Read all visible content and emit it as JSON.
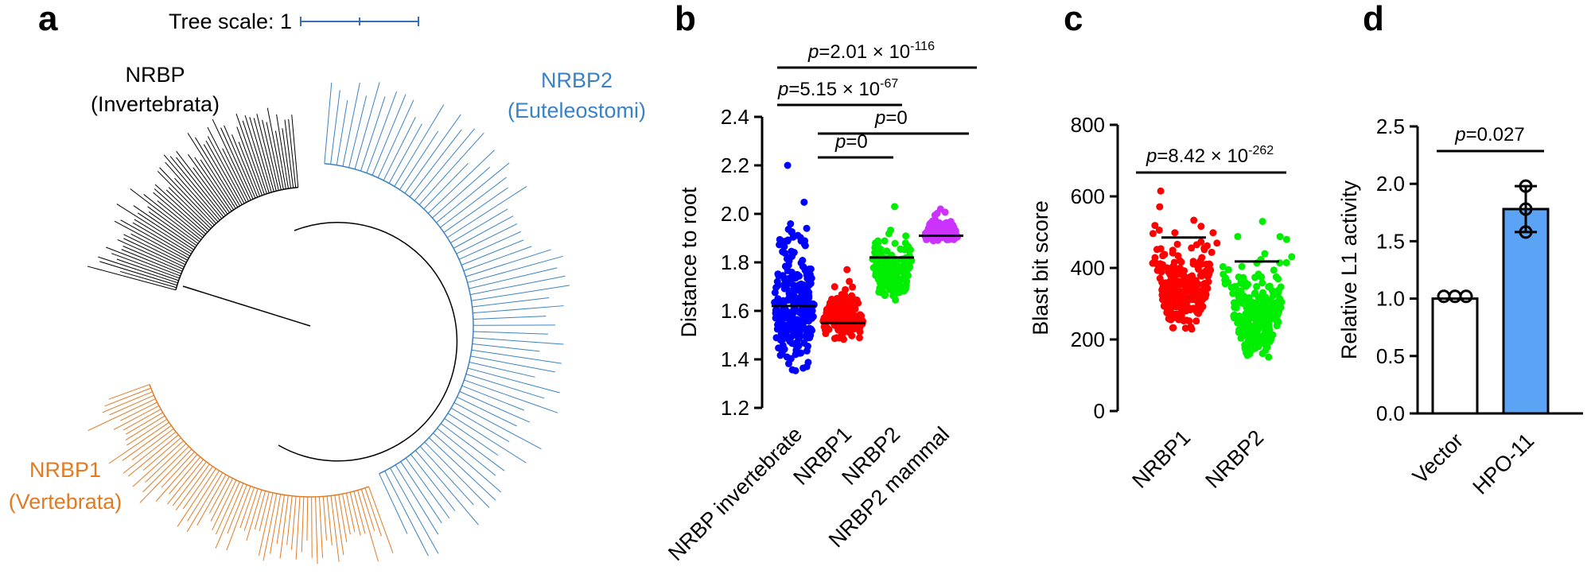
{
  "panels": {
    "a": {
      "label": "a",
      "tree_scale_label": "Tree scale: 1",
      "clades": [
        {
          "name": "NRBP",
          "subtitle": "(Invertebrata)",
          "color": "#000000"
        },
        {
          "name": "NRBP2",
          "subtitle": "(Euteleostomi)",
          "color": "#3b82c4"
        },
        {
          "name": "NRBP1",
          "subtitle": "(Vertebrata)",
          "color": "#e07b24"
        }
      ]
    },
    "b": {
      "label": "b"
    },
    "c": {
      "label": "c"
    },
    "d": {
      "label": "d"
    }
  },
  "chart_data": [
    {
      "panel": "b",
      "type": "scatter",
      "ylabel": "Distance to root",
      "ylim": [
        1.2,
        2.4
      ],
      "yticks": [
        "1.2",
        "1.4",
        "1.6",
        "1.8",
        "2.0",
        "2.2",
        "2.4"
      ],
      "categories": [
        "NRBP invertebrate",
        "NRBP1",
        "NRBP2",
        "NRBP2 mammal"
      ],
      "series": [
        {
          "name": "NRBP invertebrate",
          "color": "#0000ff",
          "median": 1.62,
          "min": 1.33,
          "max": 2.2
        },
        {
          "name": "NRBP1",
          "color": "#ff0000",
          "median": 1.55,
          "min": 1.47,
          "max": 1.77
        },
        {
          "name": "NRBP2",
          "color": "#00ee00",
          "median": 1.82,
          "min": 1.62,
          "max": 2.03
        },
        {
          "name": "NRBP2 mammal",
          "color": "#cc33ff",
          "median": 1.91,
          "min": 1.88,
          "max": 2.02
        }
      ],
      "comparisons": [
        {
          "from": 0,
          "to": 3,
          "prefix": "p",
          "text": "=2.01 × 10",
          "exp": "-116"
        },
        {
          "from": 0,
          "to": 2,
          "prefix": "p",
          "text": "=5.15 × 10",
          "exp": "-67"
        },
        {
          "from": 1,
          "to": 3,
          "prefix": "p",
          "text": "=0",
          "exp": ""
        },
        {
          "from": 1,
          "to": 2,
          "prefix": "p",
          "text": "=0",
          "exp": ""
        }
      ]
    },
    {
      "panel": "c",
      "type": "scatter",
      "ylabel": "Blast bit score",
      "ylim": [
        0,
        800
      ],
      "yticks": [
        "0",
        "200",
        "400",
        "600",
        "800"
      ],
      "categories": [
        "NRBP1",
        "NRBP2"
      ],
      "series": [
        {
          "name": "NRBP1",
          "color": "#ff0000",
          "median": 485,
          "min": 215,
          "max": 615
        },
        {
          "name": "NRBP2",
          "color": "#00ee00",
          "median": 418,
          "min": 140,
          "max": 530
        }
      ],
      "comparisons": [
        {
          "from": 0,
          "to": 1,
          "prefix": "p",
          "text": "=8.42 × 10",
          "exp": "-262"
        }
      ]
    },
    {
      "panel": "d",
      "type": "bar",
      "ylabel": "Relative L1 activity",
      "ylim": [
        0,
        2.5
      ],
      "yticks": [
        "0.0",
        "0.5",
        "1.0",
        "1.5",
        "2.0",
        "2.5"
      ],
      "categories": [
        "Vector",
        "HPO-11"
      ],
      "values": [
        1.0,
        1.78
      ],
      "errors": [
        0,
        0.2
      ],
      "points": [
        [
          1.02,
          1.02,
          1.02
        ],
        [
          1.98,
          1.58,
          1.78
        ]
      ],
      "colors": [
        "#ffffff",
        "#5ba3f5"
      ],
      "comparisons": [
        {
          "from": 0,
          "to": 1,
          "prefix": "p",
          "text": "=0.027",
          "exp": ""
        }
      ]
    }
  ]
}
